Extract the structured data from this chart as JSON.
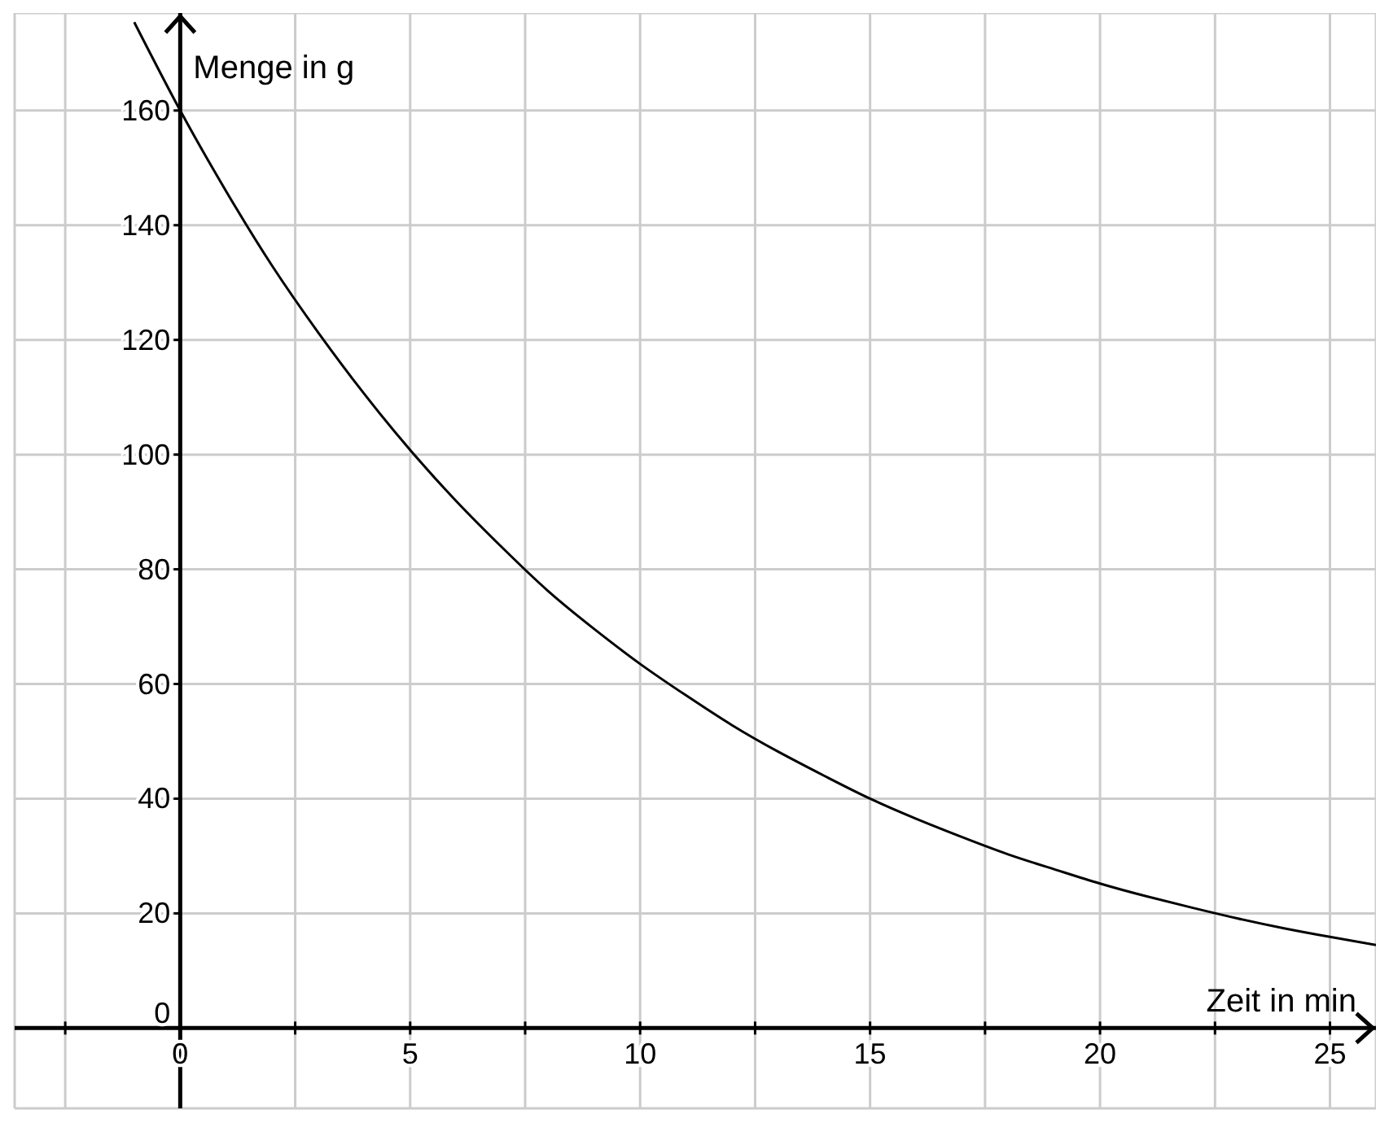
{
  "chart_data": {
    "type": "line",
    "xlabel": "Zeit in min",
    "ylabel": "Menge in g",
    "x": [
      -1,
      0,
      1,
      2,
      3,
      4,
      5,
      6,
      7,
      8,
      9,
      10,
      11,
      12,
      13,
      14,
      15,
      16,
      17,
      18,
      19,
      20,
      21,
      22,
      23,
      24,
      25,
      26
    ],
    "series": [
      {
        "color": "#000000",
        "values": [
          175.4,
          160,
          145.9,
          132.9,
          121.3,
          110.6,
          100.8,
          91.9,
          83.8,
          76.2,
          69.6,
          63.5,
          58,
          52.8,
          48.2,
          44,
          40,
          36.5,
          33.3,
          30.3,
          27.7,
          25.2,
          23,
          21,
          19.1,
          17.4,
          15.9,
          14.5
        ]
      }
    ],
    "xlim": [
      -3.6,
      26
    ],
    "ylim": [
      -14,
      177
    ],
    "xticks": [
      {
        "value": -2.5,
        "label": null
      },
      0,
      {
        "value": 2.5,
        "label": null
      },
      5,
      {
        "value": 7.5,
        "label": null
      },
      10,
      {
        "value": 12.5,
        "label": null
      },
      15,
      {
        "value": 17.5,
        "label": null
      },
      20,
      {
        "value": 22.5,
        "label": null
      },
      25
    ],
    "yticks": [
      0,
      20,
      40,
      60,
      80,
      100,
      120,
      140,
      160
    ],
    "grid": true,
    "marker": "none",
    "line_style": "solid"
  }
}
